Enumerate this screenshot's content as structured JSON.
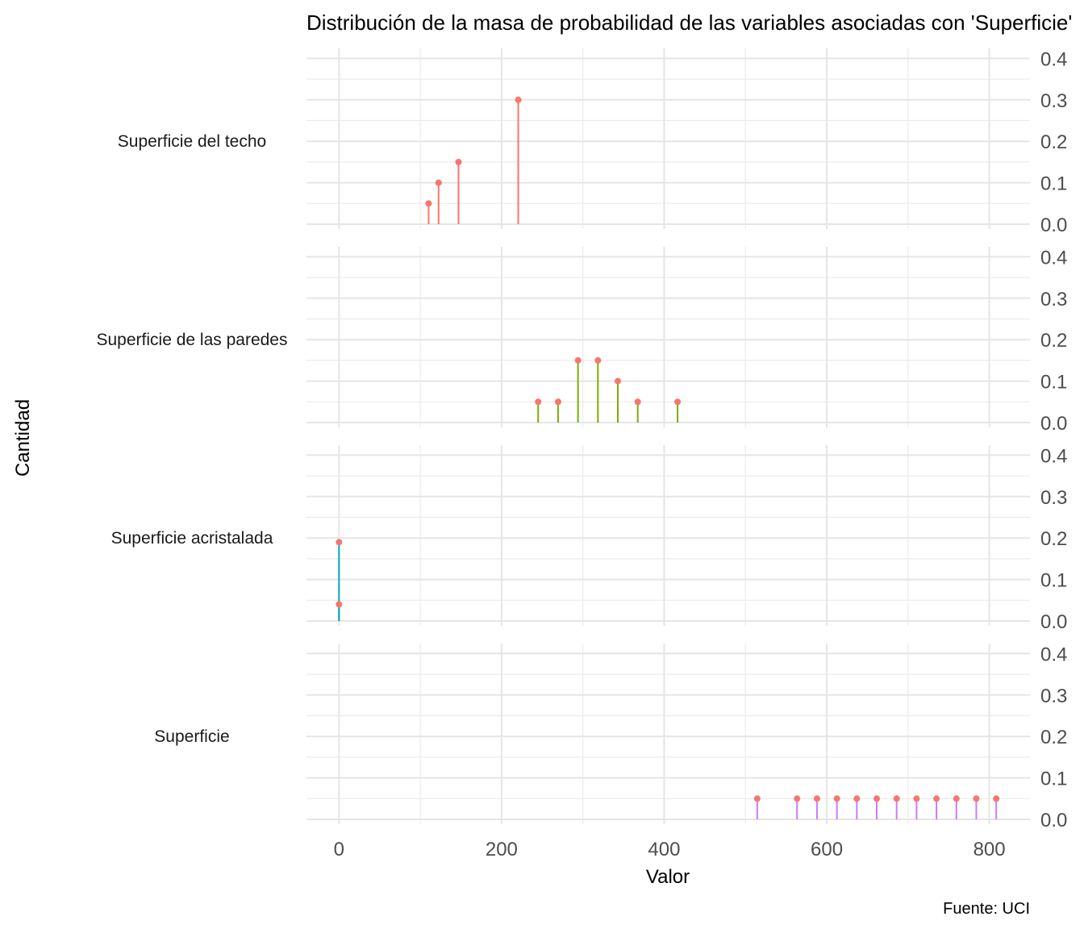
{
  "chart_data": {
    "type": "lollipop",
    "title": "Distribución de la masa de probabilidad de las variables asociadas con 'Superficie'",
    "xlabel": "Valor",
    "ylabel": "Cantidad",
    "caption": "Fuente: UCI",
    "xlim": [
      -40,
      850
    ],
    "ylim": [
      0,
      0.4
    ],
    "x_ticks": [
      0,
      200,
      400,
      600,
      800
    ],
    "y_ticks": [
      0.0,
      0.1,
      0.2,
      0.3,
      0.4
    ],
    "y_tick_labels": [
      "0.0",
      "0.1",
      "0.2",
      "0.3",
      "0.4"
    ],
    "grid": true,
    "facet_label_position": "left",
    "point_color": "#F8766D",
    "facets": [
      {
        "name": "Superficie del techo",
        "color": "#F8766D",
        "x": [
          110.25,
          122.5,
          147,
          220.5
        ],
        "y": [
          0.05,
          0.1,
          0.15,
          0.3
        ]
      },
      {
        "name": "Superficie de las paredes",
        "color": "#7CAE00",
        "x": [
          245,
          269.5,
          294,
          318.5,
          343,
          367.5,
          416.5
        ],
        "y": [
          0.05,
          0.05,
          0.15,
          0.15,
          0.1,
          0.05,
          0.05
        ]
      },
      {
        "name": "Superficie acristalada",
        "color": "#00A9C1",
        "x": [
          0,
          0
        ],
        "y": [
          0.19,
          0.04
        ]
      },
      {
        "name": "Superficie",
        "color": "#C77CFF",
        "x": [
          514.5,
          563.5,
          588,
          612.5,
          637,
          661.5,
          686,
          710.5,
          735,
          759.5,
          784,
          808.5
        ],
        "y": [
          0.05,
          0.05,
          0.05,
          0.05,
          0.05,
          0.05,
          0.05,
          0.05,
          0.05,
          0.05,
          0.05,
          0.05
        ]
      }
    ]
  }
}
